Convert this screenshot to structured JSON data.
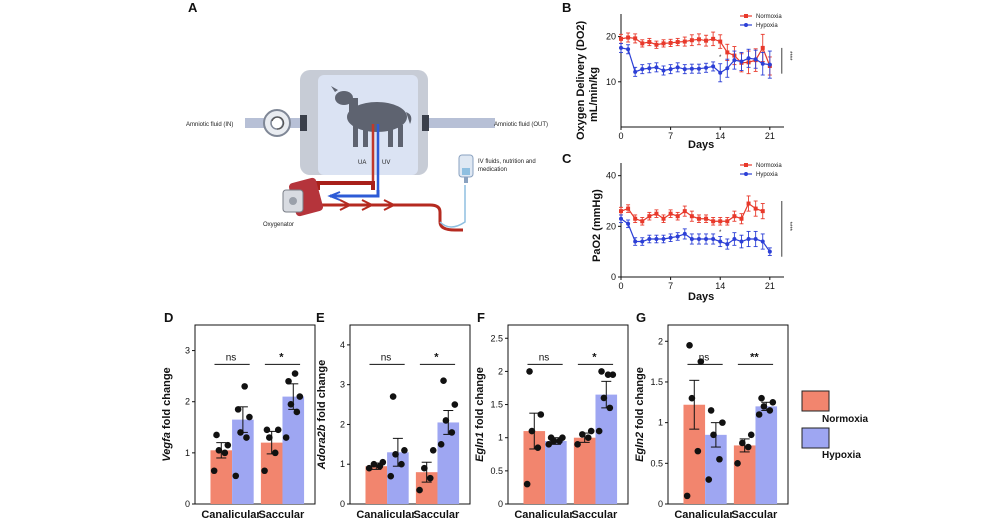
{
  "panels": {
    "A": "A",
    "B": "B",
    "C": "C",
    "D": "D",
    "E": "E",
    "F": "F",
    "G": "G"
  },
  "diagram": {
    "amniotic_in": "Amniotic fluid (IN)",
    "amniotic_out": "Amniotic fluid (OUT)",
    "ua": "UA",
    "uv": "UV",
    "iv_line1": "IV fluids, nutrition and",
    "iv_line2": "medication",
    "oxygenator": "Oxygenator"
  },
  "colors": {
    "normoxia": "#e8392b",
    "hypoxia": "#2c3fd6",
    "bar_normoxia": "#f2856e",
    "bar_hypoxia": "#9ea6f2"
  },
  "bar_legend": {
    "normoxia": "Normoxia",
    "hypoxia": "Hypoxia"
  },
  "chart_data": [
    {
      "id": "B",
      "type": "line",
      "ylabel_line1": "Oxygen Delivery (DO2)",
      "ylabel_line2": "mL/min/kg",
      "xlabel": "Days",
      "xlim": [
        0,
        23
      ],
      "ylim": [
        0,
        25
      ],
      "xticks": [
        0,
        7,
        14,
        21
      ],
      "yticks": [
        10,
        20
      ],
      "legend": [
        "Normoxia",
        "Hypoxia"
      ],
      "star": "*",
      "sig": "****",
      "series": [
        {
          "name": "Normoxia",
          "x": [
            0,
            1,
            2,
            3,
            4,
            5,
            6,
            7,
            8,
            9,
            10,
            11,
            12,
            13,
            14,
            15,
            16,
            17,
            18,
            19,
            20,
            21
          ],
          "y": [
            19.5,
            19.8,
            19.6,
            18.5,
            18.8,
            18.2,
            18.5,
            18.6,
            18.8,
            18.9,
            19.2,
            19.4,
            19.1,
            19.5,
            18.9,
            16.5,
            15.8,
            14.2,
            14.3,
            14.8,
            17.5,
            13.5
          ],
          "err": [
            1,
            1,
            1,
            0.8,
            0.8,
            0.8,
            0.8,
            0.8,
            0.8,
            1,
            1.2,
            1.2,
            1.2,
            1.5,
            1.5,
            1.8,
            2,
            2,
            2.5,
            2.5,
            3,
            2
          ]
        },
        {
          "name": "Hypoxia",
          "x": [
            0,
            1,
            2,
            3,
            4,
            5,
            6,
            7,
            8,
            9,
            10,
            11,
            12,
            13,
            14,
            15,
            16,
            17,
            18,
            19,
            20,
            21
          ],
          "y": [
            17.5,
            17.2,
            12.2,
            12.8,
            13.0,
            13.2,
            12.5,
            12.8,
            13.2,
            12.8,
            12.9,
            12.9,
            13.1,
            13.4,
            12.0,
            13.0,
            14.8,
            14.5,
            15.2,
            15.0,
            14.0,
            13.8
          ],
          "err": [
            1,
            1,
            1,
            1,
            1,
            1,
            1,
            1,
            1,
            1,
            1,
            1,
            1,
            1,
            2,
            2,
            2,
            2,
            2,
            2,
            2.5,
            3
          ]
        }
      ]
    },
    {
      "id": "C",
      "type": "line",
      "ylabel": "PaO2 (mmHg)",
      "xlabel": "Days",
      "xlim": [
        0,
        23
      ],
      "ylim": [
        0,
        45
      ],
      "xticks": [
        0,
        7,
        14,
        21
      ],
      "yticks": [
        0,
        20,
        40
      ],
      "legend": [
        "Normoxia",
        "Hypoxia"
      ],
      "star": "*",
      "sig": "****",
      "series": [
        {
          "name": "Normoxia",
          "x": [
            0,
            1,
            2,
            3,
            4,
            5,
            6,
            7,
            8,
            9,
            10,
            11,
            12,
            13,
            14,
            15,
            16,
            17,
            18,
            19,
            20
          ],
          "y": [
            26,
            27,
            23,
            22,
            24,
            25,
            23,
            25,
            24,
            26,
            24,
            23,
            23,
            22,
            22,
            22,
            24,
            23,
            29,
            27,
            26
          ],
          "err": [
            1.5,
            1.5,
            1.5,
            1.5,
            1.5,
            1.5,
            1.5,
            1.5,
            1.5,
            2,
            2,
            1.5,
            1.5,
            1.5,
            1.5,
            1.5,
            2,
            2,
            3,
            3,
            3
          ]
        },
        {
          "name": "Hypoxia",
          "x": [
            0,
            1,
            2,
            3,
            4,
            5,
            6,
            7,
            8,
            9,
            10,
            11,
            12,
            13,
            14,
            15,
            16,
            17,
            18,
            19,
            20,
            21
          ],
          "y": [
            23,
            21,
            14,
            14,
            15,
            15,
            15,
            15.5,
            16,
            17,
            15,
            15,
            15,
            15,
            14,
            13,
            15,
            14,
            15,
            15,
            14,
            10
          ],
          "err": [
            1.5,
            1.5,
            1.5,
            1.5,
            1.5,
            1.5,
            1.5,
            1.5,
            1.5,
            2,
            2,
            2,
            2,
            2,
            2,
            2,
            2.5,
            2.5,
            3,
            3,
            3,
            1.5
          ]
        }
      ]
    },
    {
      "id": "D",
      "type": "bar",
      "ylabel_gene": "Vegfa",
      "ylabel_rest": " fold change",
      "categories": [
        "Canalicular",
        "Saccular"
      ],
      "ylim": [
        0,
        3.5
      ],
      "yticks": [
        0,
        1,
        2,
        3
      ],
      "ytick_labels": [
        "0",
        "1",
        "2",
        "3"
      ],
      "sig": [
        "ns",
        "*"
      ],
      "series": [
        {
          "name": "Normoxia",
          "values": [
            1.05,
            1.2
          ],
          "err": [
            0.15,
            0.22
          ],
          "points": [
            [
              0.65,
              1.0,
              1.05,
              1.15,
              1.35
            ],
            [
              0.65,
              1.0,
              1.3,
              1.45,
              1.45
            ]
          ]
        },
        {
          "name": "Hypoxia",
          "values": [
            1.65,
            2.1
          ],
          "err": [
            0.25,
            0.25
          ],
          "points": [
            [
              0.55,
              1.3,
              1.4,
              1.7,
              1.85,
              2.3
            ],
            [
              1.3,
              1.8,
              1.95,
              2.1,
              2.4,
              2.55
            ]
          ]
        }
      ]
    },
    {
      "id": "E",
      "type": "bar",
      "ylabel_gene": "Adora2b",
      "ylabel_rest": " fold change",
      "categories": [
        "Canalicular",
        "Saccular"
      ],
      "ylim": [
        0,
        4.5
      ],
      "yticks": [
        0,
        1,
        2,
        3,
        4
      ],
      "ytick_labels": [
        "0",
        "1",
        "2",
        "3",
        "4"
      ],
      "sig": [
        "ns",
        "*"
      ],
      "series": [
        {
          "name": "Normoxia",
          "values": [
            0.95,
            0.8
          ],
          "err": [
            0.08,
            0.25
          ],
          "points": [
            [
              0.9,
              0.95,
              1.0,
              1.05
            ],
            [
              0.35,
              0.65,
              0.9,
              1.35
            ]
          ]
        },
        {
          "name": "Hypoxia",
          "values": [
            1.3,
            2.05
          ],
          "err": [
            0.35,
            0.3
          ],
          "points": [
            [
              0.7,
              1.0,
              1.25,
              1.35,
              2.7
            ],
            [
              1.5,
              1.8,
              2.1,
              2.5,
              3.1
            ]
          ]
        }
      ]
    },
    {
      "id": "F",
      "type": "bar",
      "ylabel_gene": "Egln1",
      "ylabel_rest": " fold change",
      "categories": [
        "Canalicular",
        "Saccular"
      ],
      "ylim": [
        0,
        2.7
      ],
      "yticks": [
        0,
        0.5,
        1,
        1.5,
        2,
        2.5
      ],
      "ytick_labels": [
        "0",
        "0.5",
        "1",
        "1.5",
        "2",
        "2.5"
      ],
      "sig": [
        "ns",
        "*"
      ],
      "series": [
        {
          "name": "Normoxia",
          "values": [
            1.1,
            1.0
          ],
          "err": [
            0.27,
            0.07
          ],
          "points": [
            [
              0.3,
              0.85,
              1.1,
              1.35,
              2.0
            ],
            [
              0.9,
              1.0,
              1.05,
              1.1
            ]
          ]
        },
        {
          "name": "Hypoxia",
          "values": [
            0.95,
            1.65
          ],
          "err": [
            0.05,
            0.2
          ],
          "points": [
            [
              0.9,
              0.95,
              0.95,
              1.0,
              1.0
            ],
            [
              1.1,
              1.45,
              1.6,
              1.95,
              2.0,
              1.95
            ]
          ]
        }
      ]
    },
    {
      "id": "G",
      "type": "bar",
      "ylabel_gene": "Egln2",
      "ylabel_rest": " fold change",
      "categories": [
        "Canalicular",
        "Saccular"
      ],
      "ylim": [
        0,
        2.2
      ],
      "yticks": [
        0,
        0.5,
        1,
        1.5,
        2
      ],
      "ytick_labels": [
        "0",
        "0.5",
        "1",
        "1.5",
        "2"
      ],
      "sig": [
        "ns",
        "**"
      ],
      "series": [
        {
          "name": "Normoxia",
          "values": [
            1.22,
            0.72
          ],
          "err": [
            0.3,
            0.08
          ],
          "points": [
            [
              0.1,
              0.65,
              1.3,
              1.75,
              1.95
            ],
            [
              0.5,
              0.7,
              0.75,
              0.85
            ]
          ]
        },
        {
          "name": "Hypoxia",
          "values": [
            0.85,
            1.2
          ],
          "err": [
            0.15,
            0.05
          ],
          "points": [
            [
              0.3,
              0.55,
              0.85,
              1.0,
              1.15
            ],
            [
              1.1,
              1.15,
              1.2,
              1.25,
              1.3
            ]
          ]
        }
      ]
    }
  ]
}
